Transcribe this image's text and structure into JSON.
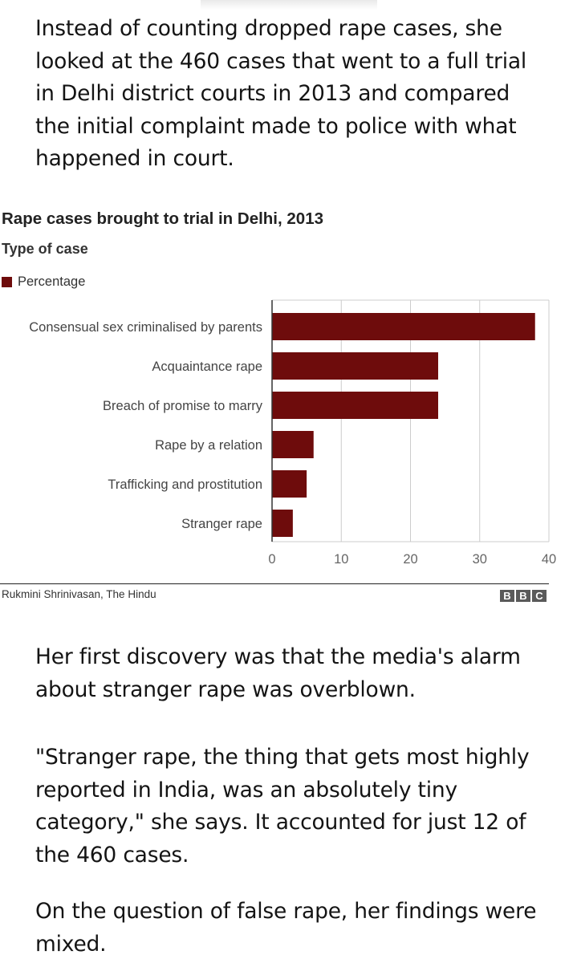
{
  "article": {
    "paragraph_1": "Instead of counting dropped rape cases, she looked at the 460 cases that went to a full trial in Delhi district courts in 2013 and compared the initial complaint made to police with what happened in court.",
    "paragraph_2": "Her first discovery was that the media's alarm about stranger rape was overblown.",
    "paragraph_3": "\"Stranger rape, the thing that gets most highly reported in India, was an absolutely tiny category,\" she says. It accounted for just 12 of the 460 cases.",
    "paragraph_4": "On the question of false rape, her findings were mixed."
  },
  "chart_data": {
    "type": "bar",
    "orientation": "horizontal",
    "title": "Rape cases brought to trial in Delhi, 2013",
    "subtitle": "Type of case",
    "categories": [
      "Consensual sex criminalised by parents",
      "Acquaintance rape",
      "Breach of promise to marry",
      "Rape by a relation",
      "Trafficking and prostitution",
      "Stranger rape"
    ],
    "series": [
      {
        "name": "Percentage",
        "color": "#6e0c0c",
        "values": [
          38,
          24,
          24,
          6,
          5,
          3
        ]
      }
    ],
    "xlim": [
      0,
      40
    ],
    "xticks": [
      "0",
      "10",
      "20",
      "30",
      "40"
    ],
    "grid": true,
    "legend": "top-left"
  },
  "source": "Rukmini Shrinivasan, The Hindu",
  "logo": {
    "name": "bbc-logo",
    "letters": [
      "B",
      "B",
      "C"
    ]
  }
}
